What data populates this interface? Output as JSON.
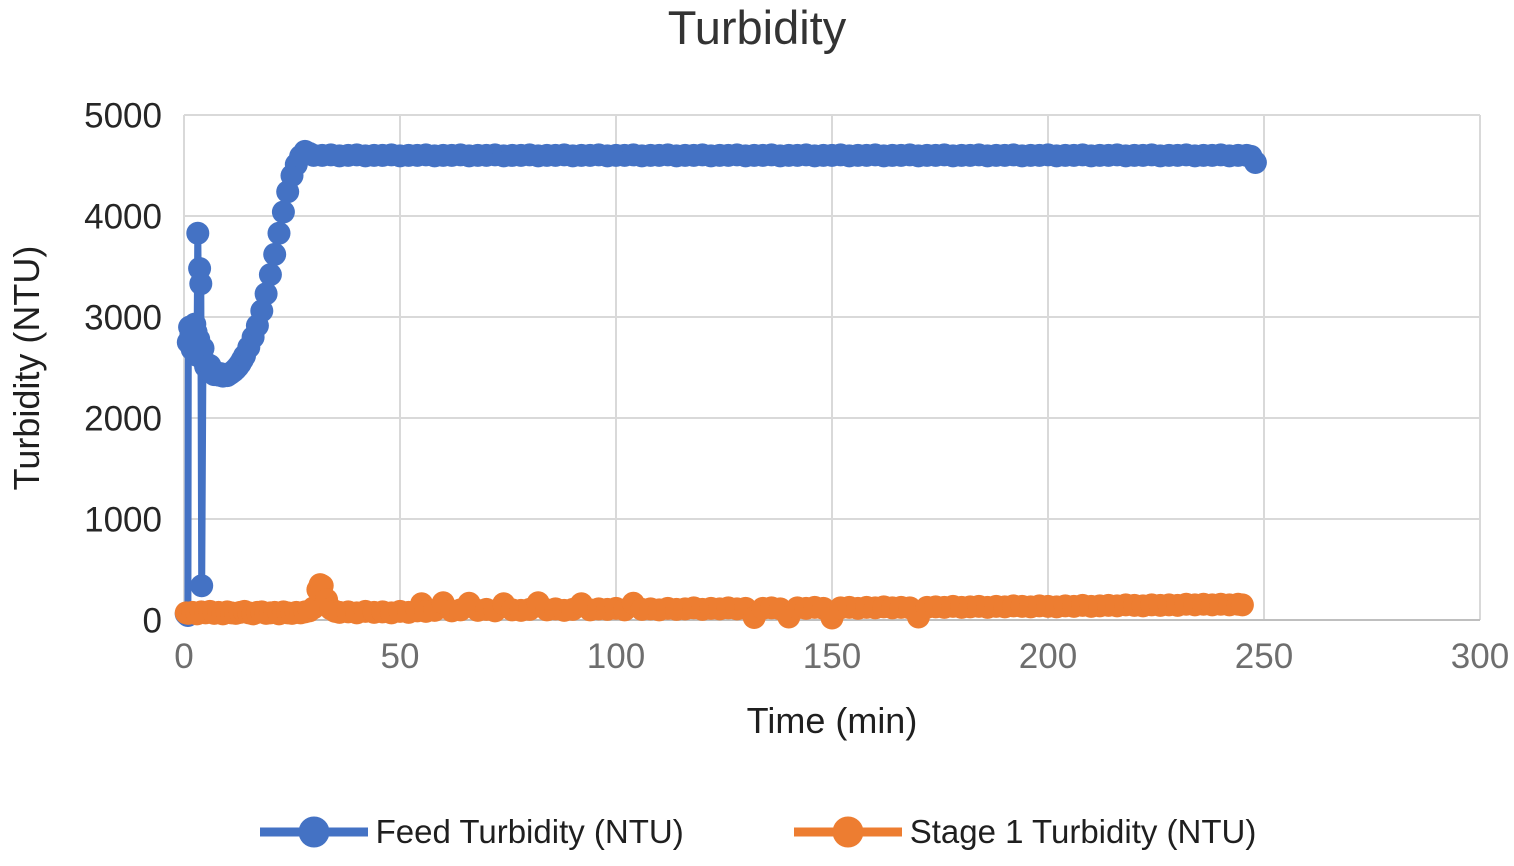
{
  "chart_data": {
    "type": "line",
    "title": "Turbidity",
    "xlabel": "Time (min)",
    "ylabel": "Turbidity (NTU)",
    "xlim": [
      0,
      300
    ],
    "ylim": [
      0,
      5000
    ],
    "x_ticks": [
      0,
      50,
      100,
      150,
      200,
      250,
      300
    ],
    "y_ticks": [
      0,
      1000,
      2000,
      3000,
      4000,
      5000
    ],
    "grid": true,
    "legend_position": "bottom",
    "colors": {
      "grid": "#d9d9d9",
      "axis": "#bfbfbf",
      "feed": "#4472C4",
      "stage1": "#ED7D31"
    },
    "series": [
      {
        "name": "Feed Turbidity (NTU)",
        "color": "#4472C4",
        "points": [
          [
            0.5,
            60
          ],
          [
            0.9,
            45
          ],
          [
            1,
            2750
          ],
          [
            1.3,
            2900
          ],
          [
            1.6,
            2820
          ],
          [
            1.9,
            2680
          ],
          [
            2.2,
            2760
          ],
          [
            2.5,
            2930
          ],
          [
            2.8,
            2850
          ],
          [
            3,
            2620
          ],
          [
            3.2,
            3830
          ],
          [
            3.4,
            2780
          ],
          [
            3.6,
            3480
          ],
          [
            3.9,
            3330
          ],
          [
            4.1,
            340
          ],
          [
            4.4,
            2690
          ],
          [
            4.7,
            2560
          ],
          [
            5,
            2510
          ],
          [
            5.5,
            2480
          ],
          [
            6,
            2520
          ],
          [
            6.5,
            2460
          ],
          [
            7,
            2430
          ],
          [
            7.5,
            2450
          ],
          [
            8,
            2425
          ],
          [
            8.5,
            2440
          ],
          [
            9,
            2415
          ],
          [
            9.5,
            2430
          ],
          [
            10,
            2420
          ],
          [
            10.5,
            2435
          ],
          [
            11,
            2450
          ],
          [
            11.5,
            2465
          ],
          [
            12,
            2485
          ],
          [
            12.5,
            2510
          ],
          [
            13,
            2540
          ],
          [
            13.5,
            2575
          ],
          [
            14,
            2615
          ],
          [
            15,
            2700
          ],
          [
            16,
            2800
          ],
          [
            17,
            2915
          ],
          [
            18,
            3060
          ],
          [
            19,
            3230
          ],
          [
            20,
            3420
          ],
          [
            21,
            3620
          ],
          [
            22,
            3830
          ],
          [
            23,
            4040
          ],
          [
            24,
            4240
          ],
          [
            25,
            4400
          ],
          [
            26,
            4510
          ],
          [
            27,
            4590
          ],
          [
            28,
            4640
          ],
          [
            29,
            4620
          ],
          [
            30,
            4600
          ],
          [
            32,
            4600
          ],
          [
            34,
            4605
          ],
          [
            36,
            4595
          ],
          [
            38,
            4600
          ],
          [
            40,
            4605
          ],
          [
            42,
            4595
          ],
          [
            44,
            4600
          ],
          [
            46,
            4600
          ],
          [
            48,
            4605
          ],
          [
            50,
            4595
          ],
          [
            52,
            4600
          ],
          [
            54,
            4600
          ],
          [
            56,
            4605
          ],
          [
            58,
            4595
          ],
          [
            60,
            4600
          ],
          [
            62,
            4600
          ],
          [
            64,
            4605
          ],
          [
            66,
            4595
          ],
          [
            68,
            4600
          ],
          [
            70,
            4600
          ],
          [
            72,
            4605
          ],
          [
            74,
            4595
          ],
          [
            76,
            4600
          ],
          [
            78,
            4600
          ],
          [
            80,
            4605
          ],
          [
            82,
            4595
          ],
          [
            84,
            4600
          ],
          [
            86,
            4600
          ],
          [
            88,
            4605
          ],
          [
            90,
            4595
          ],
          [
            92,
            4600
          ],
          [
            94,
            4600
          ],
          [
            96,
            4605
          ],
          [
            98,
            4595
          ],
          [
            100,
            4600
          ],
          [
            102,
            4600
          ],
          [
            104,
            4605
          ],
          [
            106,
            4595
          ],
          [
            108,
            4600
          ],
          [
            110,
            4600
          ],
          [
            112,
            4605
          ],
          [
            114,
            4595
          ],
          [
            116,
            4600
          ],
          [
            118,
            4600
          ],
          [
            120,
            4605
          ],
          [
            122,
            4595
          ],
          [
            124,
            4600
          ],
          [
            126,
            4600
          ],
          [
            128,
            4605
          ],
          [
            130,
            4595
          ],
          [
            132,
            4600
          ],
          [
            134,
            4600
          ],
          [
            136,
            4605
          ],
          [
            138,
            4595
          ],
          [
            140,
            4600
          ],
          [
            142,
            4600
          ],
          [
            144,
            4605
          ],
          [
            146,
            4595
          ],
          [
            148,
            4600
          ],
          [
            150,
            4600
          ],
          [
            152,
            4605
          ],
          [
            154,
            4595
          ],
          [
            156,
            4600
          ],
          [
            158,
            4600
          ],
          [
            160,
            4605
          ],
          [
            162,
            4595
          ],
          [
            164,
            4600
          ],
          [
            166,
            4600
          ],
          [
            168,
            4605
          ],
          [
            170,
            4595
          ],
          [
            172,
            4600
          ],
          [
            174,
            4600
          ],
          [
            176,
            4605
          ],
          [
            178,
            4595
          ],
          [
            180,
            4600
          ],
          [
            182,
            4600
          ],
          [
            184,
            4605
          ],
          [
            186,
            4595
          ],
          [
            188,
            4600
          ],
          [
            190,
            4600
          ],
          [
            192,
            4605
          ],
          [
            194,
            4595
          ],
          [
            196,
            4600
          ],
          [
            198,
            4600
          ],
          [
            200,
            4605
          ],
          [
            202,
            4595
          ],
          [
            204,
            4600
          ],
          [
            206,
            4600
          ],
          [
            208,
            4605
          ],
          [
            210,
            4595
          ],
          [
            212,
            4600
          ],
          [
            214,
            4600
          ],
          [
            216,
            4605
          ],
          [
            218,
            4595
          ],
          [
            220,
            4600
          ],
          [
            222,
            4600
          ],
          [
            224,
            4605
          ],
          [
            226,
            4595
          ],
          [
            228,
            4600
          ],
          [
            230,
            4600
          ],
          [
            232,
            4605
          ],
          [
            234,
            4595
          ],
          [
            236,
            4600
          ],
          [
            238,
            4600
          ],
          [
            240,
            4605
          ],
          [
            242,
            4595
          ],
          [
            244,
            4600
          ],
          [
            246,
            4600
          ],
          [
            247,
            4590
          ],
          [
            248,
            4530
          ]
        ]
      },
      {
        "name": "Stage 1 Turbidity (NTU)",
        "color": "#ED7D31",
        "points": [
          [
            0.5,
            70
          ],
          [
            1,
            65
          ],
          [
            2,
            75
          ],
          [
            3,
            60
          ],
          [
            4,
            80
          ],
          [
            5,
            70
          ],
          [
            6,
            85
          ],
          [
            7,
            65
          ],
          [
            8,
            75
          ],
          [
            9,
            60
          ],
          [
            10,
            80
          ],
          [
            11,
            70
          ],
          [
            12,
            65
          ],
          [
            13,
            75
          ],
          [
            14,
            85
          ],
          [
            15,
            70
          ],
          [
            16,
            60
          ],
          [
            17,
            75
          ],
          [
            18,
            80
          ],
          [
            19,
            65
          ],
          [
            20,
            70
          ],
          [
            21,
            75
          ],
          [
            22,
            60
          ],
          [
            23,
            80
          ],
          [
            24,
            70
          ],
          [
            25,
            65
          ],
          [
            26,
            75
          ],
          [
            27,
            70
          ],
          [
            28,
            80
          ],
          [
            29,
            90
          ],
          [
            30,
            120
          ],
          [
            31,
            300
          ],
          [
            31.5,
            350
          ],
          [
            32,
            340
          ],
          [
            33,
            200
          ],
          [
            34,
            110
          ],
          [
            35,
            85
          ],
          [
            36,
            75
          ],
          [
            38,
            80
          ],
          [
            40,
            70
          ],
          [
            42,
            85
          ],
          [
            44,
            75
          ],
          [
            46,
            80
          ],
          [
            48,
            70
          ],
          [
            50,
            85
          ],
          [
            52,
            75
          ],
          [
            54,
            90
          ],
          [
            55,
            160
          ],
          [
            56,
            85
          ],
          [
            58,
            95
          ],
          [
            60,
            170
          ],
          [
            62,
            90
          ],
          [
            64,
            100
          ],
          [
            66,
            165
          ],
          [
            68,
            95
          ],
          [
            70,
            105
          ],
          [
            72,
            90
          ],
          [
            74,
            160
          ],
          [
            76,
            100
          ],
          [
            78,
            95
          ],
          [
            80,
            105
          ],
          [
            82,
            170
          ],
          [
            84,
            100
          ],
          [
            86,
            110
          ],
          [
            88,
            95
          ],
          [
            90,
            105
          ],
          [
            92,
            160
          ],
          [
            94,
            100
          ],
          [
            96,
            110
          ],
          [
            98,
            105
          ],
          [
            100,
            115
          ],
          [
            102,
            100
          ],
          [
            104,
            165
          ],
          [
            106,
            105
          ],
          [
            108,
            110
          ],
          [
            110,
            100
          ],
          [
            112,
            115
          ],
          [
            114,
            105
          ],
          [
            116,
            110
          ],
          [
            118,
            120
          ],
          [
            120,
            105
          ],
          [
            122,
            115
          ],
          [
            124,
            110
          ],
          [
            126,
            120
          ],
          [
            128,
            110
          ],
          [
            130,
            115
          ],
          [
            132,
            25
          ],
          [
            134,
            115
          ],
          [
            136,
            120
          ],
          [
            138,
            110
          ],
          [
            140,
            30
          ],
          [
            142,
            120
          ],
          [
            144,
            115
          ],
          [
            146,
            125
          ],
          [
            148,
            115
          ],
          [
            150,
            20
          ],
          [
            152,
            120
          ],
          [
            154,
            125
          ],
          [
            156,
            115
          ],
          [
            158,
            125
          ],
          [
            160,
            120
          ],
          [
            162,
            130
          ],
          [
            164,
            120
          ],
          [
            166,
            125
          ],
          [
            168,
            120
          ],
          [
            170,
            30
          ],
          [
            172,
            125
          ],
          [
            174,
            130
          ],
          [
            176,
            125
          ],
          [
            178,
            135
          ],
          [
            180,
            125
          ],
          [
            182,
            130
          ],
          [
            184,
            135
          ],
          [
            186,
            125
          ],
          [
            188,
            135
          ],
          [
            190,
            130
          ],
          [
            192,
            140
          ],
          [
            194,
            135
          ],
          [
            196,
            130
          ],
          [
            198,
            140
          ],
          [
            200,
            135
          ],
          [
            202,
            130
          ],
          [
            204,
            140
          ],
          [
            206,
            135
          ],
          [
            208,
            145
          ],
          [
            210,
            135
          ],
          [
            212,
            140
          ],
          [
            214,
            145
          ],
          [
            216,
            140
          ],
          [
            218,
            150
          ],
          [
            220,
            145
          ],
          [
            222,
            140
          ],
          [
            224,
            150
          ],
          [
            226,
            145
          ],
          [
            228,
            150
          ],
          [
            230,
            145
          ],
          [
            232,
            155
          ],
          [
            234,
            150
          ],
          [
            236,
            155
          ],
          [
            238,
            150
          ],
          [
            240,
            155
          ],
          [
            242,
            150
          ],
          [
            244,
            155
          ],
          [
            245,
            150
          ]
        ]
      }
    ]
  }
}
